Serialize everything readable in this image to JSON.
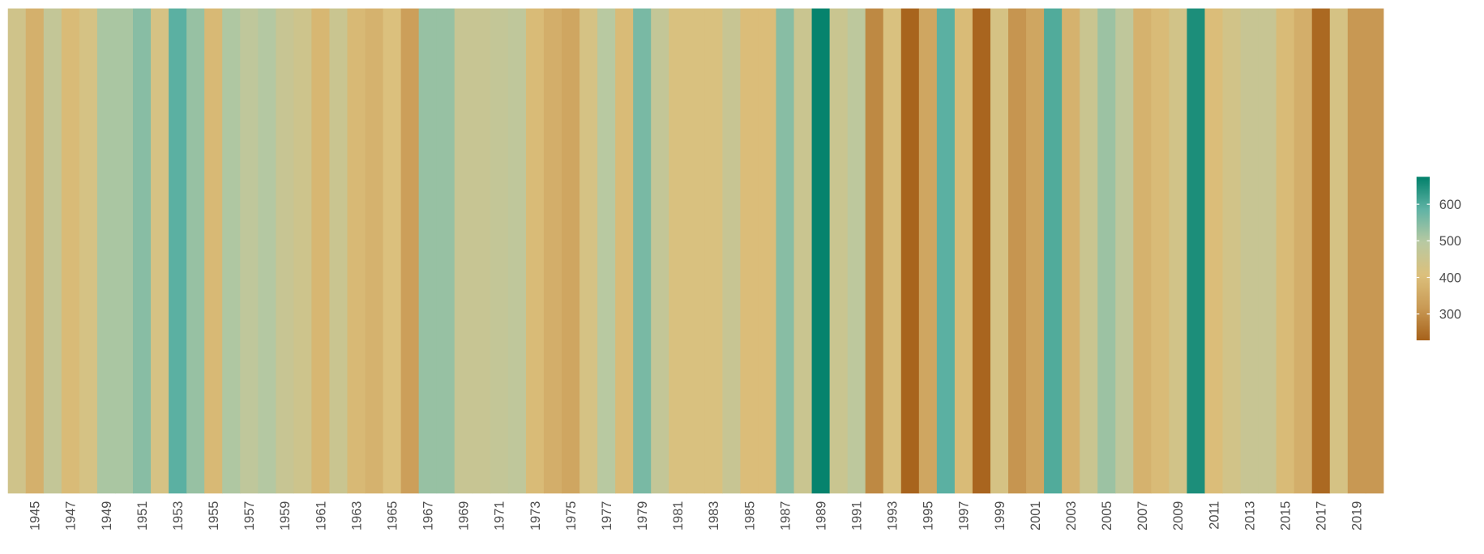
{
  "chart_data": {
    "type": "heatmap-stripes",
    "categories": [
      null,
      "1945",
      null,
      "1947",
      null,
      "1949",
      null,
      "1951",
      null,
      "1953",
      null,
      "1955",
      null,
      "1957",
      null,
      "1959",
      null,
      "1961",
      null,
      "1963",
      null,
      "1965",
      null,
      "1967",
      null,
      "1969",
      null,
      "1971",
      null,
      "1973",
      null,
      "1975",
      null,
      "1977",
      null,
      "1979",
      null,
      "1981",
      null,
      "1983",
      null,
      "1985",
      null,
      "1987",
      null,
      "1989",
      null,
      "1991",
      null,
      "1993",
      null,
      "1995",
      null,
      "1997",
      null,
      "1999",
      null,
      "2001",
      null,
      "2003",
      null,
      "2005",
      null,
      "2007",
      null,
      "2009",
      null,
      "2011",
      null,
      "2013",
      null,
      "2015",
      null,
      "2017",
      null,
      "2019",
      null
    ],
    "values": [
      440,
      370,
      470,
      395,
      425,
      510,
      510,
      545,
      425,
      590,
      530,
      390,
      505,
      480,
      500,
      460,
      445,
      385,
      455,
      390,
      375,
      410,
      330,
      530,
      530,
      460,
      460,
      470,
      480,
      395,
      365,
      345,
      425,
      495,
      395,
      560,
      470,
      415,
      415,
      415,
      460,
      400,
      400,
      545,
      455,
      670,
      455,
      485,
      290,
      415,
      232,
      345,
      590,
      395,
      235,
      425,
      310,
      345,
      600,
      375,
      455,
      525,
      480,
      375,
      395,
      435,
      650,
      400,
      435,
      460,
      460,
      395,
      365,
      240,
      425,
      315,
      315
    ],
    "colors": [
      "#a6611a",
      "#c99a55",
      "#dcc07c",
      "#b8c9a2",
      "#60b3a5",
      "#01806a"
    ],
    "clim": [
      228,
      675
    ],
    "cticks": [
      300,
      400,
      500,
      600
    ]
  }
}
